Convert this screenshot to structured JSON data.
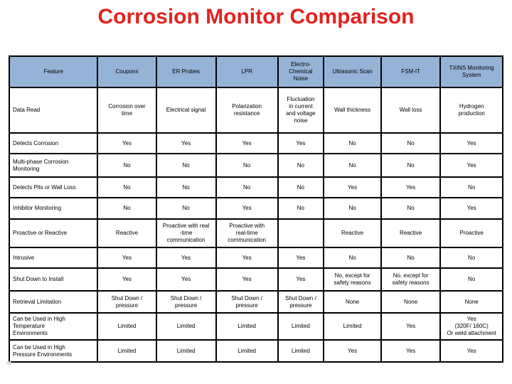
{
  "page": {
    "title": "Corrosion Monitor Comparison",
    "title_color": "#e3221f",
    "header_bg": "#95b3d7",
    "border_color": "#000000"
  },
  "table": {
    "columns": [
      "Feature",
      "Coupons",
      "ER Probes",
      "LPR",
      "Electro-\nChemical\nNoise",
      "Ultrasonic Scan",
      "FSM-IT",
      "TXINS Monitoring\nSystem"
    ],
    "rows": [
      {
        "feature": "Data Read",
        "values": [
          "Corrosion over\ntime",
          "Electrical signal",
          "Polarization\nresistance",
          "Fluctuation\nin current\nand voltage\nnoise",
          "Wall thickness",
          "Wall loss",
          "Hydrogen\nproduction"
        ]
      },
      {
        "feature": "Detects Corrosion",
        "values": [
          "Yes",
          "Yes",
          "Yes",
          "Yes",
          "No",
          "No",
          "Yes"
        ]
      },
      {
        "feature": "Multi-phase Corrosion\nMonitoring",
        "values": [
          "No",
          "No",
          "No",
          "No",
          "No",
          "No",
          "Yes"
        ]
      },
      {
        "feature": "Detects Pits or Wall Loss",
        "values": [
          "No",
          "No",
          "No",
          "No",
          "Yes",
          "Yes",
          "No"
        ]
      },
      {
        "feature": "Inhibitor Monitoring",
        "values": [
          "No",
          "No",
          "Yes",
          "No",
          "No",
          "No",
          "Yes"
        ]
      },
      {
        "feature": "Proactive or Reactive",
        "values": [
          "Reactive",
          "Proactive with real\n-time\ncommunication",
          "Proactive with\nreal-time\ncommunication",
          "",
          "Reactive",
          "Reactive",
          "Proactive"
        ]
      },
      {
        "feature": "Intrusive",
        "values": [
          "Yes",
          "Yes",
          "Yes",
          "Yes",
          "No",
          "No",
          "No"
        ]
      },
      {
        "feature": "Shut Down to Install",
        "values": [
          "Yes",
          "Yes",
          "Yes",
          "Yes",
          "No, except for\nsafety reasons",
          "No, except for\nsafety reasons",
          "No"
        ]
      },
      {
        "feature": "Retrieval Limitation",
        "values": [
          "Shut Down /\npressure",
          "Shut Down /\npressure",
          "Shut Down /\npressure",
          "Shut Down /\npressure",
          "None",
          "None",
          "None"
        ]
      },
      {
        "feature": "Can be Used in High\nTemperature\nEnvironments",
        "values": [
          "Limited",
          "Limited",
          "Limited",
          "Limited",
          "Limited",
          "Yes",
          "Yes\n(320F/ 160C)\nOr weld attachment"
        ]
      },
      {
        "feature": "Can be Used in High\nPressure Environments",
        "values": [
          "Limited",
          "Limited",
          "Limited",
          "Limited",
          "Yes",
          "Yes",
          "Yes"
        ]
      }
    ]
  }
}
